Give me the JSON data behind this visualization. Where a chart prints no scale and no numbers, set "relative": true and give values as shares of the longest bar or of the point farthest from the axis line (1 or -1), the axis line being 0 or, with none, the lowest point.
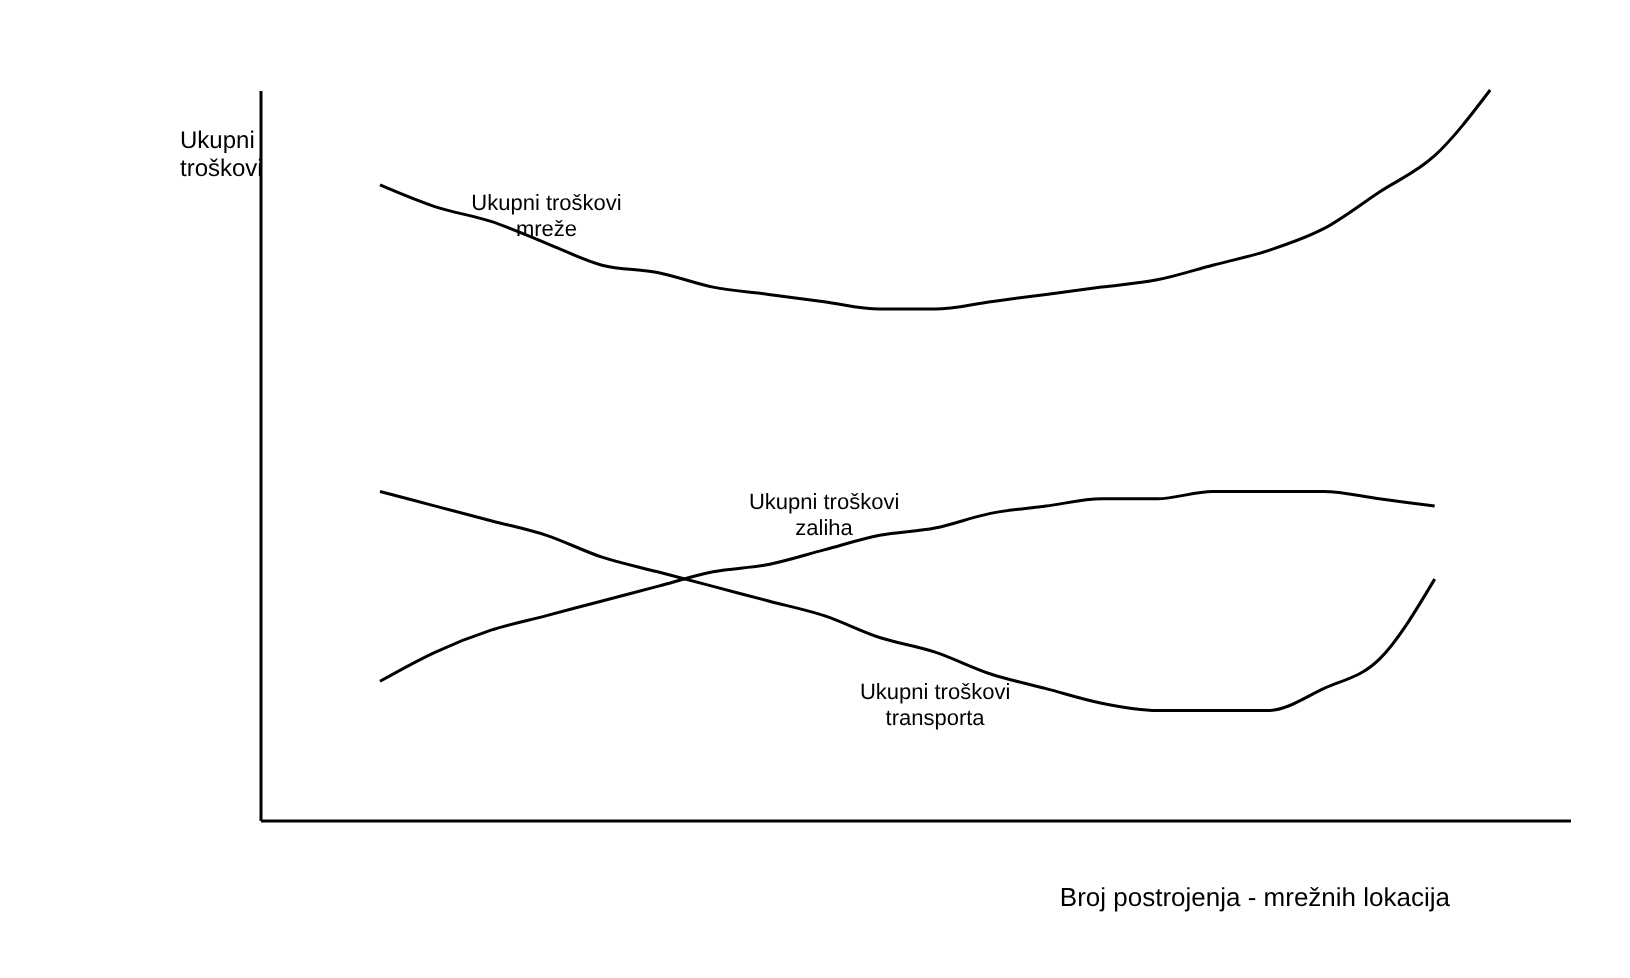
{
  "chart_data": {
    "type": "line",
    "relative": true,
    "xlabel": "Broj postrojenja - mrežnih lokacija",
    "ylabel": "Ukupni troškovi",
    "categories": [
      null,
      null,
      null,
      null,
      null,
      null,
      null,
      null,
      null,
      null,
      null,
      null,
      null,
      null,
      null,
      null,
      null,
      null,
      null,
      null,
      null
    ],
    "series": [
      {
        "name": "Ukupni troškovi mreže",
        "color": "#000000",
        "values": [
          0.87,
          0.84,
          0.82,
          0.79,
          0.76,
          0.75,
          0.73,
          0.72,
          0.71,
          0.7,
          0.7,
          0.71,
          0.72,
          0.73,
          0.74,
          0.76,
          0.78,
          0.81,
          0.86,
          0.91,
          1.0
        ]
      },
      {
        "name": "Ukupni troškovi zaliha",
        "color": "#000000",
        "values": [
          0.19,
          0.23,
          0.26,
          0.28,
          0.3,
          0.32,
          0.34,
          0.35,
          0.37,
          0.39,
          0.4,
          0.42,
          0.43,
          0.44,
          0.44,
          0.45,
          0.45,
          0.45,
          0.44,
          0.43,
          null
        ]
      },
      {
        "name": "Ukupni troškovi transporta",
        "color": "#000000",
        "values": [
          0.45,
          0.43,
          0.41,
          0.39,
          0.36,
          0.34,
          0.32,
          0.3,
          0.28,
          0.25,
          0.23,
          0.2,
          0.18,
          0.16,
          0.15,
          0.15,
          0.15,
          0.18,
          0.22,
          0.33,
          null
        ]
      }
    ],
    "grid": false,
    "legend": false,
    "marker": "none",
    "line_style": "solid"
  }
}
